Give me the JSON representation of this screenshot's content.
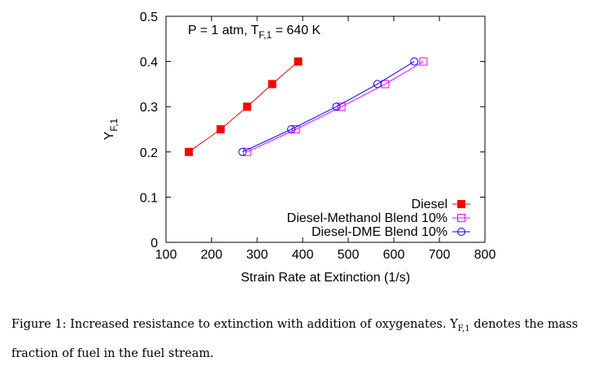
{
  "chart_data": {
    "type": "line",
    "xlabel": "Strain Rate at Extinction (1/s)",
    "ylabel_main": "Y",
    "ylabel_sub": "F,1",
    "xlim": [
      100,
      800
    ],
    "ylim": [
      0,
      0.5
    ],
    "xticks": [
      "100",
      "200",
      "300",
      "400",
      "500",
      "600",
      "700",
      "800"
    ],
    "yticks": [
      "0",
      "0.1",
      "0.2",
      "0.3",
      "0.4",
      "0.5"
    ],
    "annotation": {
      "prefix": "P = 1 atm, T",
      "sub": "F,1",
      "suffix": " = 640 K"
    },
    "legend_position": "bottom-right",
    "grid": false,
    "series": [
      {
        "name": "Diesel",
        "color": "#ff0000",
        "marker": "filled-square",
        "x": [
          150,
          220,
          278,
          333,
          390
        ],
        "y": [
          0.2,
          0.25,
          0.3,
          0.35,
          0.4
        ]
      },
      {
        "name": "Diesel-Methanol Blend 10%",
        "color": "#ff00ff",
        "marker": "open-square",
        "x": [
          278,
          385,
          485,
          581,
          665
        ],
        "y": [
          0.2,
          0.25,
          0.3,
          0.35,
          0.4
        ]
      },
      {
        "name": "Diesel-DME Blend 10%",
        "color": "#0000ff",
        "marker": "open-circle",
        "x": [
          268,
          375,
          474,
          564,
          645
        ],
        "y": [
          0.2,
          0.25,
          0.3,
          0.35,
          0.4
        ]
      }
    ]
  },
  "caption": {
    "main": "Figure 1: Increased resistance to extinction with addition of oxygenates. Y",
    "sub": "F,1",
    "rest": " denotes the mass fraction of fuel in the fuel stream."
  }
}
